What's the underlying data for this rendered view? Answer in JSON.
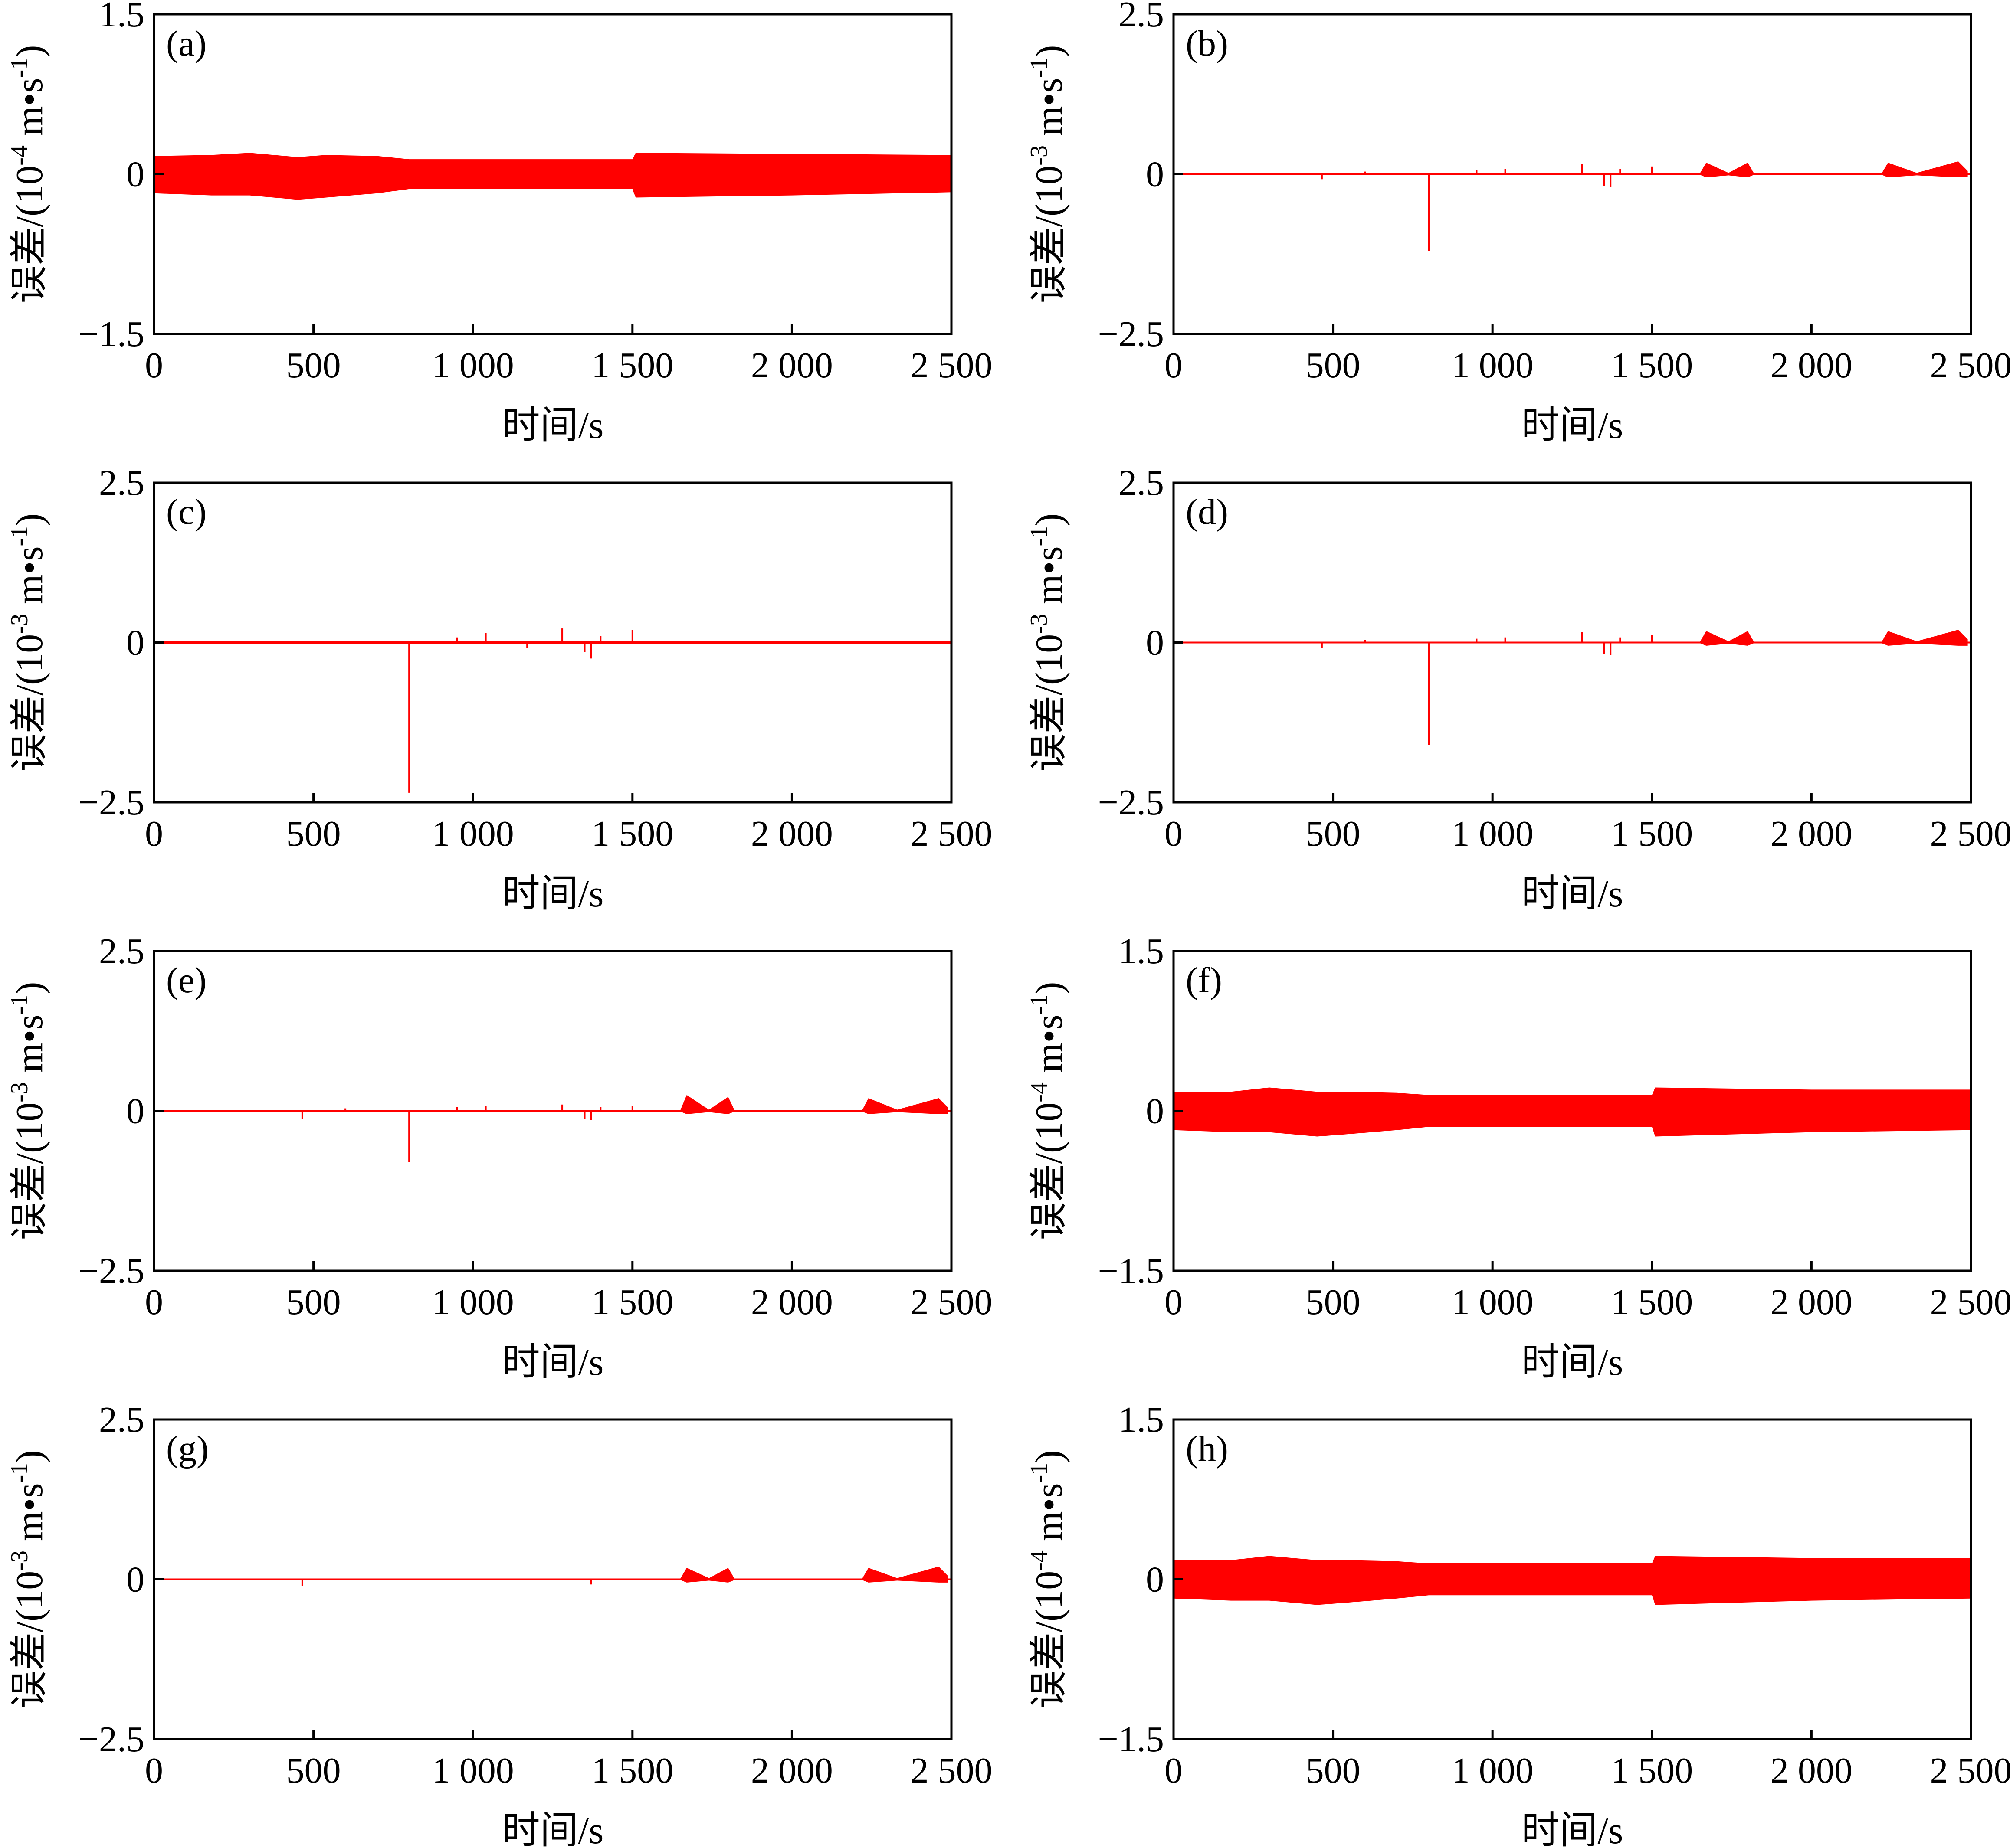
{
  "chart_data": [
    {
      "type": "line",
      "panel": "(a)",
      "xlabel": "时间/s",
      "ylabel": "误差/(10-4 m•s-1)",
      "ylabel_base": "误差/(10",
      "ylabel_exp": "-4",
      "ylabel_unit": " m•s",
      "ylabel_unit_exp": "-1",
      "ylabel_close": ")",
      "xlim": [
        0,
        2500
      ],
      "ylim": [
        -1.5,
        1.5
      ],
      "xticks": [
        "0",
        "500",
        "1 000",
        "1 500",
        "2 000",
        "2 500"
      ],
      "yticks": [
        "−1.5",
        "0",
        "1.5"
      ],
      "color": "#ff0000",
      "series": [
        {
          "band": [
            [
              0,
              0.17,
              -0.18
            ],
            [
              180,
              0.18,
              -0.2
            ],
            [
              300,
              0.2,
              -0.2
            ],
            [
              450,
              0.16,
              -0.24
            ],
            [
              540,
              0.18,
              -0.22
            ],
            [
              700,
              0.17,
              -0.18
            ],
            [
              800,
              0.14,
              -0.14
            ],
            [
              1500,
              0.14,
              -0.14
            ],
            [
              1510,
              0.2,
              -0.22
            ],
            [
              2000,
              0.19,
              -0.2
            ],
            [
              2500,
              0.18,
              -0.17
            ]
          ],
          "spikes": []
        }
      ]
    },
    {
      "type": "line",
      "panel": "(b)",
      "xlabel": "时间/s",
      "ylabel": "误差/(10-3 m•s-1)",
      "ylabel_base": "误差/(10",
      "ylabel_exp": "-3",
      "ylabel_unit": " m•s",
      "ylabel_unit_exp": "-1",
      "ylabel_close": ")",
      "xlim": [
        0,
        2500
      ],
      "ylim": [
        -2.5,
        2.5
      ],
      "xticks": [
        "0",
        "500",
        "1 000",
        "1 500",
        "2 000",
        "2 500"
      ],
      "yticks": [
        "−2.5",
        "0",
        "2.5"
      ],
      "color": "#ff0000",
      "series": [
        {
          "band": [
            [
              0,
              0.01,
              -0.01
            ],
            [
              1650,
              0.01,
              -0.01
            ],
            [
              1670,
              0.18,
              -0.05
            ],
            [
              1740,
              0.02,
              -0.02
            ],
            [
              1800,
              0.18,
              -0.05
            ],
            [
              1820,
              0.01,
              -0.01
            ],
            [
              2220,
              0.01,
              -0.01
            ],
            [
              2240,
              0.18,
              -0.05
            ],
            [
              2330,
              0.02,
              -0.02
            ],
            [
              2460,
              0.2,
              -0.05
            ],
            [
              2490,
              0.05,
              -0.05
            ]
          ],
          "spikes": [
            [
              465,
              -0.08
            ],
            [
              600,
              0.04
            ],
            [
              800,
              -1.2
            ],
            [
              950,
              0.06
            ],
            [
              1040,
              0.08
            ],
            [
              1280,
              0.16
            ],
            [
              1350,
              -0.18
            ],
            [
              1370,
              -0.2
            ],
            [
              1400,
              0.08
            ],
            [
              1500,
              0.12
            ]
          ]
        }
      ]
    },
    {
      "type": "line",
      "panel": "(c)",
      "xlabel": "时间/s",
      "ylabel": "误差/(10-3 m•s-1)",
      "ylabel_base": "误差/(10",
      "ylabel_exp": "-3",
      "ylabel_unit": " m•s",
      "ylabel_unit_exp": "-1",
      "ylabel_close": ")",
      "xlim": [
        0,
        2500
      ],
      "ylim": [
        -2.5,
        2.5
      ],
      "xticks": [
        "0",
        "500",
        "1 000",
        "1 500",
        "2 000",
        "2 500"
      ],
      "yticks": [
        "−2.5",
        "0",
        "2.5"
      ],
      "color": "#ff0000",
      "series": [
        {
          "band": [
            [
              0,
              0.02,
              -0.02
            ],
            [
              2500,
              0.02,
              -0.02
            ]
          ],
          "spikes": [
            [
              800,
              -2.35
            ],
            [
              950,
              0.08
            ],
            [
              1040,
              0.15
            ],
            [
              1170,
              -0.08
            ],
            [
              1280,
              0.22
            ],
            [
              1350,
              -0.15
            ],
            [
              1370,
              -0.25
            ],
            [
              1400,
              0.1
            ],
            [
              1500,
              0.2
            ]
          ]
        }
      ]
    },
    {
      "type": "line",
      "panel": "(d)",
      "xlabel": "时间/s",
      "ylabel": "误差/(10-3 m•s-1)",
      "ylabel_base": "误差/(10",
      "ylabel_exp": "-3",
      "ylabel_unit": " m•s",
      "ylabel_unit_exp": "-1",
      "ylabel_close": ")",
      "xlim": [
        0,
        2500
      ],
      "ylim": [
        -2.5,
        2.5
      ],
      "xticks": [
        "0",
        "500",
        "1 000",
        "1 500",
        "2 000",
        "2 500"
      ],
      "yticks": [
        "−2.5",
        "0",
        "2.5"
      ],
      "color": "#ff0000",
      "series": [
        {
          "band": [
            [
              0,
              0.01,
              -0.01
            ],
            [
              1650,
              0.01,
              -0.01
            ],
            [
              1670,
              0.18,
              -0.05
            ],
            [
              1740,
              0.02,
              -0.02
            ],
            [
              1800,
              0.18,
              -0.05
            ],
            [
              1820,
              0.01,
              -0.01
            ],
            [
              2220,
              0.01,
              -0.01
            ],
            [
              2240,
              0.18,
              -0.05
            ],
            [
              2330,
              0.02,
              -0.02
            ],
            [
              2460,
              0.2,
              -0.05
            ],
            [
              2490,
              0.05,
              -0.05
            ]
          ],
          "spikes": [
            [
              465,
              -0.08
            ],
            [
              600,
              0.04
            ],
            [
              800,
              -1.6
            ],
            [
              950,
              0.06
            ],
            [
              1040,
              0.08
            ],
            [
              1280,
              0.16
            ],
            [
              1350,
              -0.18
            ],
            [
              1370,
              -0.2
            ],
            [
              1400,
              0.08
            ],
            [
              1500,
              0.12
            ]
          ]
        }
      ]
    },
    {
      "type": "line",
      "panel": "(e)",
      "xlabel": "时间/s",
      "ylabel": "误差/(10-3 m•s-1)",
      "ylabel_base": "误差/(10",
      "ylabel_exp": "-3",
      "ylabel_unit": " m•s",
      "ylabel_unit_exp": "-1",
      "ylabel_close": ")",
      "xlim": [
        0,
        2500
      ],
      "ylim": [
        -2.5,
        2.5
      ],
      "xticks": [
        "0",
        "500",
        "1 000",
        "1 500",
        "2 000",
        "2 500"
      ],
      "yticks": [
        "−2.5",
        "0",
        "2.5"
      ],
      "color": "#ff0000",
      "series": [
        {
          "band": [
            [
              0,
              0.01,
              -0.01
            ],
            [
              1650,
              0.01,
              -0.01
            ],
            [
              1670,
              0.25,
              -0.05
            ],
            [
              1740,
              0.02,
              -0.02
            ],
            [
              1800,
              0.22,
              -0.05
            ],
            [
              1820,
              0.01,
              -0.01
            ],
            [
              2220,
              0.01,
              -0.01
            ],
            [
              2240,
              0.2,
              -0.05
            ],
            [
              2330,
              0.02,
              -0.02
            ],
            [
              2460,
              0.2,
              -0.05
            ],
            [
              2490,
              0.05,
              -0.05
            ]
          ],
          "spikes": [
            [
              465,
              -0.12
            ],
            [
              600,
              0.04
            ],
            [
              800,
              -0.8
            ],
            [
              950,
              0.06
            ],
            [
              1040,
              0.08
            ],
            [
              1280,
              0.1
            ],
            [
              1350,
              -0.12
            ],
            [
              1370,
              -0.14
            ],
            [
              1400,
              0.06
            ],
            [
              1500,
              0.08
            ]
          ]
        }
      ]
    },
    {
      "type": "line",
      "panel": "(f)",
      "xlabel": "时间/s",
      "ylabel": "误差/(10-4 m•s-1)",
      "ylabel_base": "误差/(10",
      "ylabel_exp": "-4",
      "ylabel_unit": " m•s",
      "ylabel_unit_exp": "-1",
      "ylabel_close": ")",
      "xlim": [
        0,
        2500
      ],
      "ylim": [
        -1.5,
        1.5
      ],
      "xticks": [
        "0",
        "500",
        "1 000",
        "1 500",
        "2 000",
        "2 500"
      ],
      "yticks": [
        "−1.5",
        "0",
        "1.5"
      ],
      "color": "#ff0000",
      "series": [
        {
          "band": [
            [
              0,
              0.18,
              -0.18
            ],
            [
              180,
              0.18,
              -0.2
            ],
            [
              300,
              0.22,
              -0.2
            ],
            [
              450,
              0.18,
              -0.24
            ],
            [
              540,
              0.18,
              -0.22
            ],
            [
              700,
              0.17,
              -0.18
            ],
            [
              800,
              0.15,
              -0.15
            ],
            [
              1500,
              0.15,
              -0.15
            ],
            [
              1510,
              0.22,
              -0.24
            ],
            [
              2000,
              0.2,
              -0.2
            ],
            [
              2500,
              0.2,
              -0.18
            ]
          ],
          "spikes": []
        }
      ]
    },
    {
      "type": "line",
      "panel": "(g)",
      "xlabel": "时间/s",
      "ylabel": "误差/(10-3 m•s-1)",
      "ylabel_base": "误差/(10",
      "ylabel_exp": "-3",
      "ylabel_unit": " m•s",
      "ylabel_unit_exp": "-1",
      "ylabel_close": ")",
      "xlim": [
        0,
        2500
      ],
      "ylim": [
        -2.5,
        2.5
      ],
      "xticks": [
        "0",
        "500",
        "1 000",
        "1 500",
        "2 000",
        "2 500"
      ],
      "yticks": [
        "−2.5",
        "0",
        "2.5"
      ],
      "color": "#ff0000",
      "series": [
        {
          "band": [
            [
              0,
              0.01,
              -0.01
            ],
            [
              1650,
              0.01,
              -0.01
            ],
            [
              1670,
              0.18,
              -0.05
            ],
            [
              1740,
              0.02,
              -0.02
            ],
            [
              1800,
              0.18,
              -0.05
            ],
            [
              1820,
              0.01,
              -0.01
            ],
            [
              2220,
              0.01,
              -0.01
            ],
            [
              2240,
              0.18,
              -0.05
            ],
            [
              2330,
              0.02,
              -0.02
            ],
            [
              2460,
              0.2,
              -0.05
            ],
            [
              2490,
              0.05,
              -0.05
            ]
          ],
          "spikes": [
            [
              465,
              -0.1
            ],
            [
              1370,
              -0.08
            ]
          ]
        }
      ]
    },
    {
      "type": "line",
      "panel": "(h)",
      "xlabel": "时间/s",
      "ylabel": "误差/(10-4 m•s-1)",
      "ylabel_base": "误差/(10",
      "ylabel_exp": "-4",
      "ylabel_unit": " m•s",
      "ylabel_unit_exp": "-1",
      "ylabel_close": ")",
      "xlim": [
        0,
        2500
      ],
      "ylim": [
        -1.5,
        1.5
      ],
      "xticks": [
        "0",
        "500",
        "1 000",
        "1 500",
        "2 000",
        "2 500"
      ],
      "yticks": [
        "−1.5",
        "0",
        "1.5"
      ],
      "color": "#ff0000",
      "series": [
        {
          "band": [
            [
              0,
              0.18,
              -0.18
            ],
            [
              180,
              0.18,
              -0.2
            ],
            [
              300,
              0.22,
              -0.2
            ],
            [
              450,
              0.18,
              -0.24
            ],
            [
              540,
              0.18,
              -0.22
            ],
            [
              700,
              0.17,
              -0.18
            ],
            [
              800,
              0.15,
              -0.15
            ],
            [
              1500,
              0.15,
              -0.15
            ],
            [
              1510,
              0.22,
              -0.24
            ],
            [
              2000,
              0.2,
              -0.2
            ],
            [
              2500,
              0.2,
              -0.18
            ]
          ],
          "spikes": []
        }
      ]
    }
  ]
}
